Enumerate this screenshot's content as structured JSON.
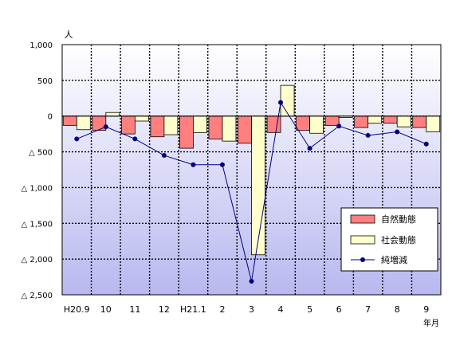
{
  "chart_data": {
    "type": "bar",
    "unit_label": "人",
    "x_unit_label": "年月",
    "categories": [
      "H20.9",
      "10",
      "11",
      "12",
      "H21.1",
      "2",
      "3",
      "4",
      "5",
      "6",
      "7",
      "8",
      "9"
    ],
    "y_tick_labels": [
      "1,000",
      "500",
      "0",
      "△ 500",
      "△ 1,000",
      "△ 1,500",
      "△ 2,000",
      "△ 2,500"
    ],
    "y_ticks": [
      1000,
      500,
      0,
      -500,
      -1000,
      -1500,
      -2000,
      -2500
    ],
    "ylim": [
      -2500,
      1000
    ],
    "grid": true,
    "legend_position": "bottom-right",
    "series": [
      {
        "name": "自然動態",
        "type": "bar",
        "color": "#ff7f7f",
        "values": [
          -130,
          -200,
          -250,
          -290,
          -450,
          -320,
          -380,
          -230,
          -200,
          -130,
          -160,
          -100,
          -160
        ]
      },
      {
        "name": "社会動態",
        "type": "bar",
        "color": "#ffffcc",
        "values": [
          -190,
          50,
          -70,
          -260,
          -230,
          -350,
          -1940,
          430,
          -240,
          -20,
          -100,
          -150,
          -220
        ]
      },
      {
        "name": "純増減",
        "type": "line",
        "color": "#000080",
        "values": [
          -320,
          -150,
          -320,
          -550,
          -680,
          -680,
          -2310,
          190,
          -450,
          -140,
          -270,
          -220,
          -390
        ]
      }
    ]
  }
}
